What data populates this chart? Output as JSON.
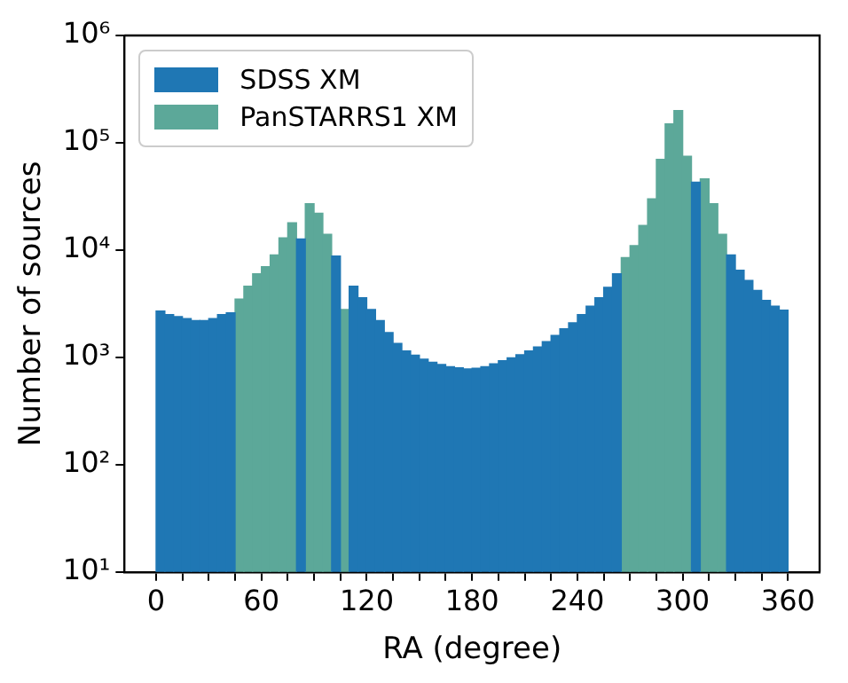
{
  "chart_data": {
    "type": "histogram",
    "xlabel": "RA (degree)",
    "ylabel": "Number of sources",
    "bins": [
      0,
      5,
      10,
      15,
      20,
      25,
      30,
      35,
      40,
      45,
      50,
      55,
      60,
      65,
      70,
      75,
      80,
      85,
      90,
      95,
      100,
      105,
      110,
      115,
      120,
      125,
      130,
      135,
      140,
      145,
      150,
      155,
      160,
      165,
      170,
      175,
      180,
      185,
      190,
      195,
      200,
      205,
      210,
      215,
      220,
      225,
      230,
      235,
      240,
      245,
      250,
      255,
      260,
      265,
      270,
      275,
      280,
      285,
      290,
      295,
      300,
      305,
      310,
      315,
      320,
      325,
      330,
      335,
      340,
      345,
      350,
      355,
      360
    ],
    "series": [
      {
        "name": "SDSS XM",
        "color": "#1f77b4",
        "values": [
          2700,
          2500,
          2400,
          2300,
          2200,
          2200,
          2300,
          2500,
          2600,
          null,
          null,
          null,
          null,
          null,
          null,
          null,
          12700,
          null,
          null,
          null,
          8800,
          null,
          4600,
          3600,
          2800,
          2200,
          1700,
          1350,
          1150,
          1050,
          960,
          900,
          860,
          820,
          800,
          780,
          790,
          820,
          870,
          930,
          990,
          1060,
          1150,
          1250,
          1400,
          1600,
          1850,
          2100,
          2500,
          3000,
          3600,
          4500,
          6000,
          null,
          null,
          null,
          null,
          null,
          null,
          null,
          null,
          43000,
          null,
          null,
          null,
          9000,
          6500,
          5200,
          4200,
          3400,
          3000,
          2750
        ]
      },
      {
        "name": "PanSTARRS1 XM",
        "color": "#5ca899",
        "values": [
          null,
          null,
          null,
          null,
          null,
          null,
          null,
          null,
          null,
          3500,
          4600,
          6000,
          7000,
          9000,
          13000,
          18000,
          null,
          27000,
          22000,
          14000,
          null,
          2800,
          null,
          null,
          null,
          null,
          null,
          null,
          null,
          null,
          null,
          null,
          null,
          null,
          null,
          null,
          null,
          null,
          null,
          null,
          null,
          null,
          null,
          null,
          null,
          null,
          null,
          null,
          null,
          null,
          null,
          null,
          null,
          8500,
          11000,
          17000,
          30000,
          70000,
          150000,
          200000,
          75000,
          null,
          46000,
          27000,
          14000,
          null,
          null,
          null,
          null,
          null,
          null,
          null
        ]
      }
    ],
    "xlim": [
      -18,
      378
    ],
    "xticks": [
      0,
      {
        "value": 15,
        "label": null
      },
      {
        "value": 30,
        "label": null
      },
      {
        "value": 45,
        "label": null
      },
      60,
      {
        "value": 75,
        "label": null
      },
      {
        "value": 90,
        "label": null
      },
      {
        "value": 105,
        "label": null
      },
      120,
      {
        "value": 135,
        "label": null
      },
      {
        "value": 150,
        "label": null
      },
      {
        "value": 165,
        "label": null
      },
      180,
      {
        "value": 195,
        "label": null
      },
      {
        "value": 210,
        "label": null
      },
      {
        "value": 225,
        "label": null
      },
      240,
      {
        "value": 255,
        "label": null
      },
      {
        "value": 270,
        "label": null
      },
      {
        "value": 285,
        "label": null
      },
      300,
      {
        "value": 315,
        "label": null
      },
      {
        "value": 330,
        "label": null
      },
      {
        "value": 345,
        "label": null
      },
      360
    ],
    "ylim": [
      10,
      1000000
    ],
    "yticks": [
      {
        "value": 10,
        "label": "10¹"
      },
      {
        "value": 100,
        "label": "10²"
      },
      {
        "value": 1000,
        "label": "10³"
      },
      {
        "value": 10000,
        "label": "10⁴"
      },
      {
        "value": 100000,
        "label": "10⁵"
      },
      {
        "value": 1000000,
        "label": "10⁶"
      }
    ],
    "log": "y",
    "grid": false,
    "legend": "top left"
  }
}
